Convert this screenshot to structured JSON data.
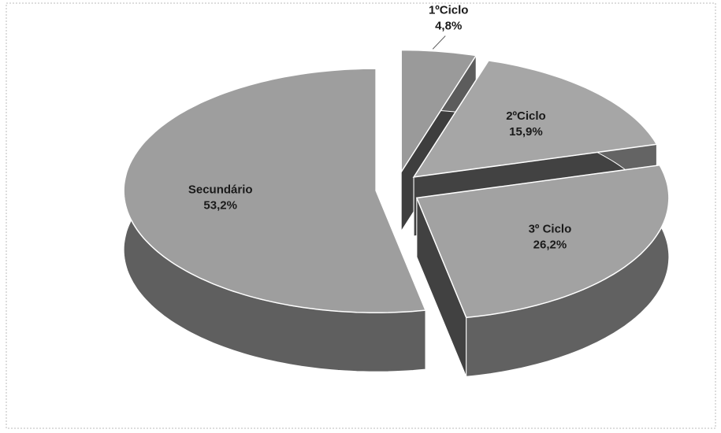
{
  "chart_data": {
    "type": "pie3d",
    "categories": [
      "1ºCiclo",
      "2ºCiclo",
      "3º Ciclo",
      "Secundário"
    ],
    "values": [
      4.8,
      15.9,
      26.2,
      53.2
    ],
    "value_labels": [
      "4,8%",
      "15,9%",
      "26,2%",
      "53,2%"
    ],
    "colors": [
      "#9a9a9a",
      "#a6a6a6",
      "#a2a2a2",
      "#9e9e9e"
    ]
  }
}
